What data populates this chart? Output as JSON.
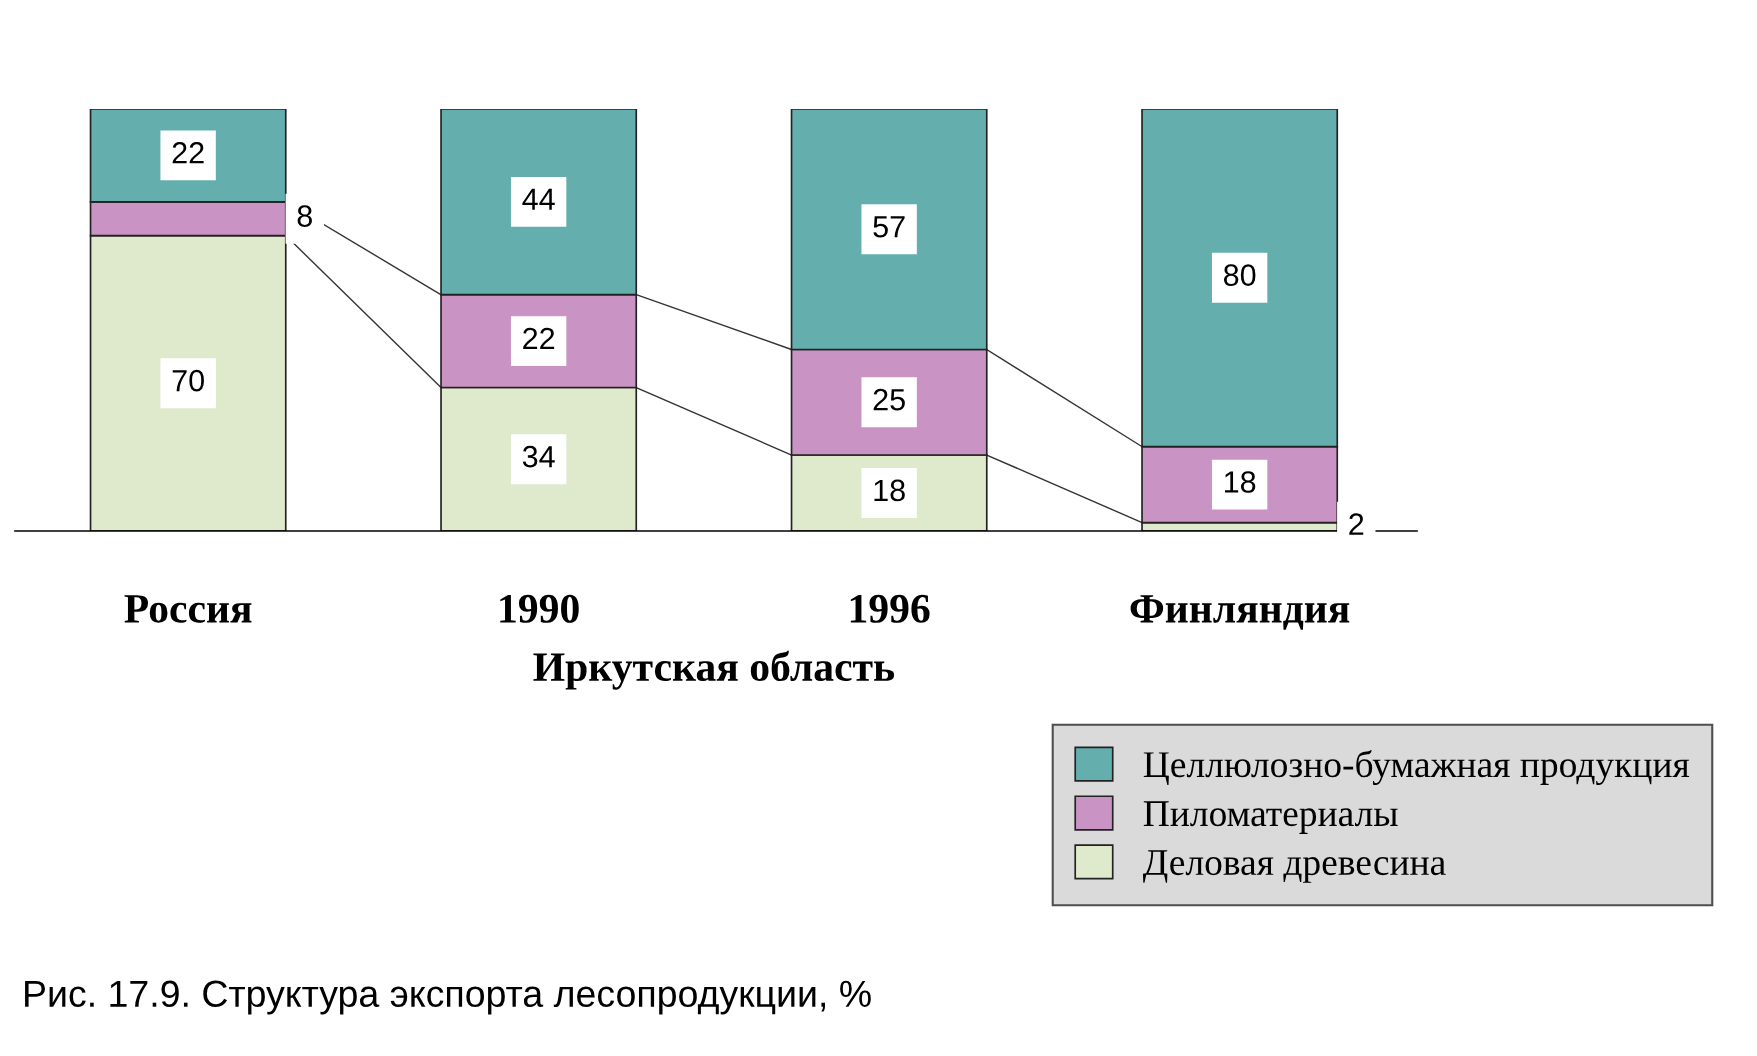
{
  "chart_data": {
    "type": "bar",
    "stacked": true,
    "data_labels": true,
    "categories": [
      "Россия",
      "1990",
      "1996",
      "Финляндия"
    ],
    "series": [
      {
        "name": "Деловая древесина",
        "color": "#dfe9cc",
        "values": [
          70,
          34,
          18,
          2
        ]
      },
      {
        "name": "Пиломатериалы",
        "color": "#c993c3",
        "values": [
          8,
          22,
          25,
          18
        ]
      },
      {
        "name": "Целлюлозно-бумажная продукция",
        "color": "#64aeae",
        "values": [
          22,
          44,
          57,
          80
        ]
      }
    ],
    "legend": "bottom right",
    "annotations": [
      "Иркутская область",
      "Рис. 17.9. Структура экспорта лесопродукции, %"
    ]
  }
}
